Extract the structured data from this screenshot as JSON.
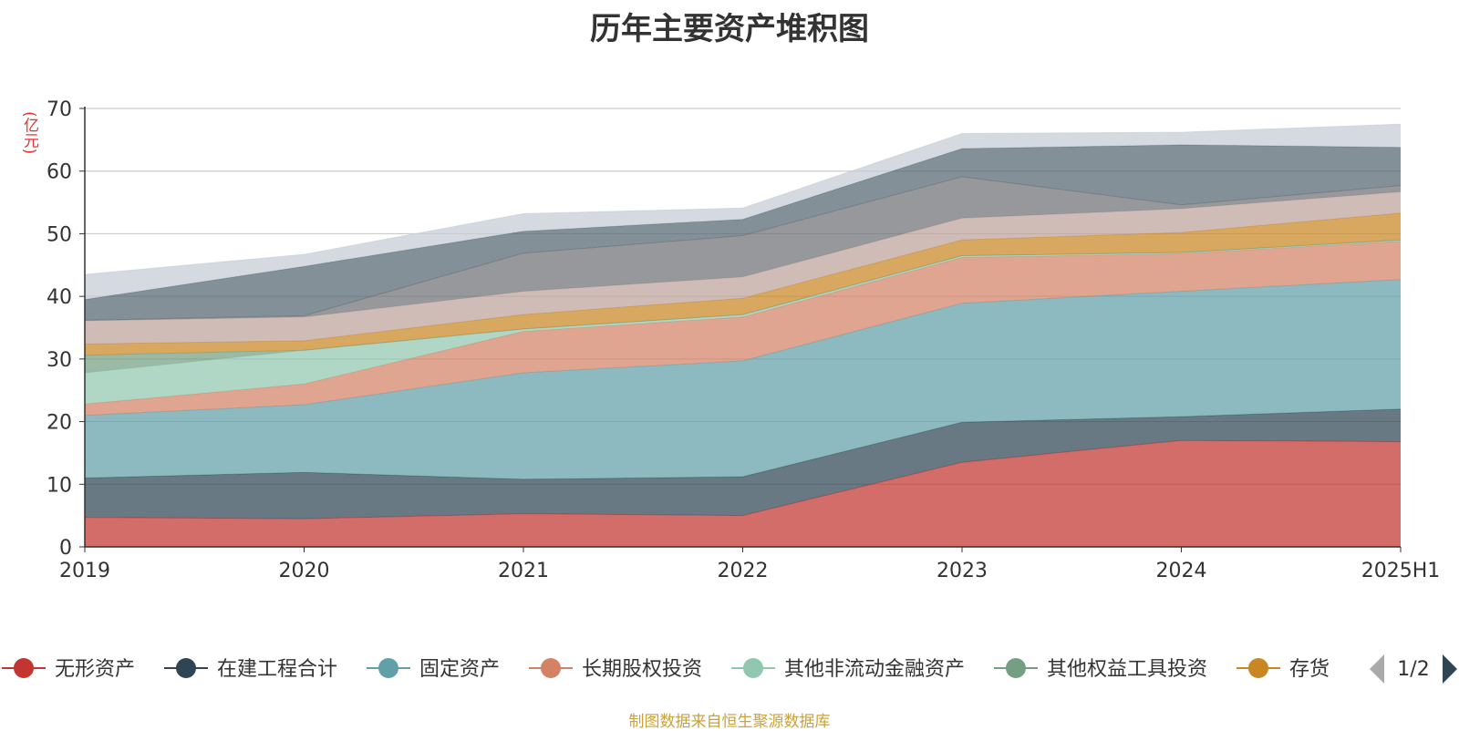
{
  "chart_data": {
    "type": "area",
    "stacked": true,
    "title": "历年主要资产堆积图",
    "ylabel": "(亿元)",
    "ylim": [
      0,
      70
    ],
    "yticks": [
      "0",
      "10",
      "20",
      "30",
      "40",
      "50",
      "60",
      "70"
    ],
    "grid": true,
    "categories": [
      "2019",
      "2020",
      "2021",
      "2022",
      "2023",
      "2024",
      "2025H1"
    ],
    "series": [
      {
        "name": "无形资产",
        "color": "#c23531",
        "values": [
          4.7,
          4.5,
          5.3,
          5.0,
          13.5,
          17.0,
          16.8
        ]
      },
      {
        "name": "在建工程合计",
        "color": "#2f4554",
        "values": [
          6.3,
          7.4,
          5.5,
          6.2,
          6.4,
          3.8,
          5.2
        ]
      },
      {
        "name": "固定资产",
        "color": "#61a0a8",
        "values": [
          10.0,
          10.8,
          17.0,
          18.5,
          19.0,
          20.0,
          20.7
        ]
      },
      {
        "name": "长期股权投资",
        "color": "#d48265",
        "values": [
          1.8,
          3.3,
          6.6,
          7.0,
          7.3,
          6.0,
          6.1
        ]
      },
      {
        "name": "其他非流动金融资产",
        "color": "#91c7ae",
        "values": [
          5.0,
          5.4,
          0.4,
          0.4,
          0.3,
          0.2,
          0.2
        ]
      },
      {
        "name": "其他权益工具投资",
        "color": "#749f83",
        "values": [
          2.8,
          0.0,
          0.0,
          0.0,
          0.0,
          0.0,
          0.0
        ]
      },
      {
        "name": "存货",
        "color": "#ca8622",
        "values": [
          1.8,
          1.5,
          2.3,
          2.6,
          2.5,
          3.2,
          4.3
        ]
      },
      {
        "name": "",
        "color": "#bda29a",
        "values": [
          3.7,
          3.8,
          3.7,
          3.4,
          3.5,
          3.8,
          3.4
        ]
      },
      {
        "name": "",
        "color": "#6e7074",
        "values": [
          0.1,
          0.2,
          6.1,
          6.6,
          6.6,
          0.6,
          1.0
        ]
      },
      {
        "name": "",
        "color": "#546570",
        "values": [
          3.3,
          7.9,
          3.5,
          2.6,
          4.5,
          9.6,
          6.1
        ]
      },
      {
        "name": "",
        "color": "#c4ccd3",
        "values": [
          4.0,
          1.9,
          2.8,
          1.8,
          2.4,
          2.0,
          3.7
        ]
      }
    ],
    "legend": {
      "placement": "bottom",
      "page": "1/2"
    },
    "source": "制图数据来自恒生聚源数据库"
  }
}
